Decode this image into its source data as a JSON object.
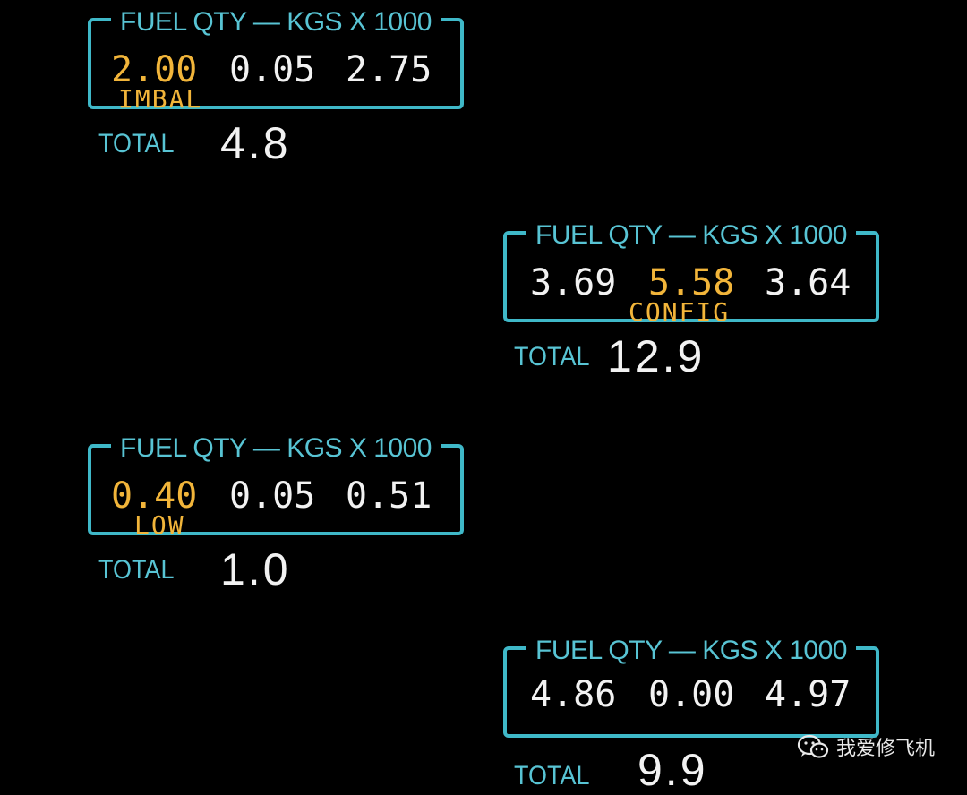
{
  "displays": [
    {
      "title": "FUEL QTY — KGS X 1000",
      "left": "2.00",
      "center": "0.05",
      "right": "2.75",
      "tag": "IMBAL",
      "total_label": "TOTAL",
      "total": "4.8"
    },
    {
      "title": "FUEL QTY — KGS X 1000",
      "left": "3.69",
      "center": "5.58",
      "right": "3.64",
      "tag": "CONFIG",
      "total_label": "TOTAL",
      "total": "12.9"
    },
    {
      "title": "FUEL QTY — KGS X 1000",
      "left": "0.40",
      "center": "0.05",
      "right": "0.51",
      "tag": "LOW",
      "total_label": "TOTAL",
      "total": "1.0"
    },
    {
      "title": "FUEL QTY — KGS X 1000",
      "left": "4.86",
      "center": "0.00",
      "right": "4.97",
      "tag": "",
      "total_label": "TOTAL",
      "total": "9.9"
    }
  ],
  "watermark": {
    "text": "我爱修飞机",
    "icon": "wechat-icon"
  },
  "colors": {
    "frame": "#3fb8c8",
    "label": "#58c4d4",
    "value": "#f2f2f2",
    "caution": "#f2b53a",
    "background": "#000000"
  }
}
